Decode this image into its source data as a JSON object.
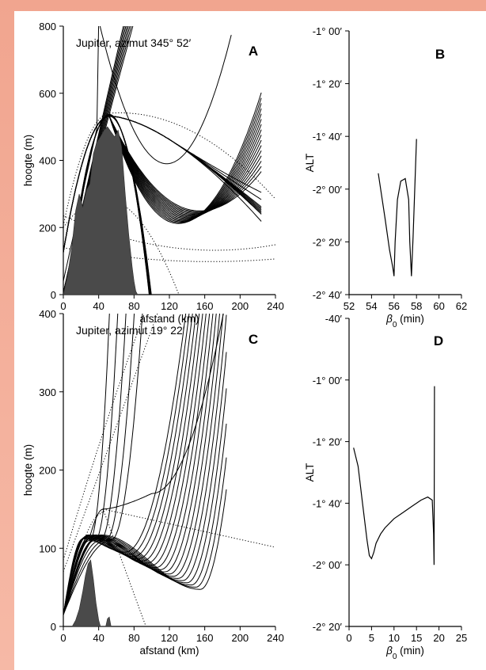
{
  "chart_data": [
    {
      "id": "A",
      "type": "line",
      "panel_letter": "A",
      "title": "Jupiter, azimut 345° 52′",
      "xlabel": "afstand (km)",
      "ylabel": "hoogte (m)",
      "xlim": [
        0,
        240
      ],
      "ylim": [
        0,
        800
      ],
      "xticks": [
        "0",
        "40",
        "80",
        "120",
        "160",
        "200",
        "240"
      ],
      "yticks": [
        "0",
        "200",
        "400",
        "600",
        "800"
      ],
      "terrain": {
        "x": [
          0,
          5,
          10,
          14,
          18,
          22,
          26,
          30,
          34,
          38,
          42,
          46,
          50,
          54,
          58,
          62,
          66,
          70,
          74,
          78,
          80,
          82,
          84
        ],
        "y": [
          0,
          60,
          150,
          250,
          300,
          260,
          310,
          330,
          420,
          455,
          470,
          490,
          500,
          485,
          470,
          490,
          440,
          300,
          180,
          80,
          40,
          10,
          0
        ]
      }
    },
    {
      "id": "B",
      "type": "line",
      "panel_letter": "B",
      "xlabel": "β0 (min)",
      "ylabel": "ALT",
      "xlim": [
        52,
        62
      ],
      "ylim": [
        -160,
        -60
      ],
      "xticks": [
        "52",
        "54",
        "56",
        "58",
        "60",
        "62"
      ],
      "yticks": [
        "-1° 00′",
        "-1° 20′",
        "-1° 40′",
        "-2° 00′",
        "-2° 20′",
        "-2° 40′"
      ],
      "series": [
        {
          "x": [
            54.6,
            55.2,
            55.6,
            55.9,
            56.0,
            56.1,
            56.3,
            56.6,
            57.0,
            57.3,
            57.4,
            57.55,
            57.7,
            58.0
          ],
          "y": [
            -114,
            -131,
            -143,
            -150,
            -153,
            -140,
            -124,
            -117,
            -116,
            -124,
            -140,
            -153,
            -138,
            -101
          ]
        }
      ]
    },
    {
      "id": "C",
      "type": "line",
      "panel_letter": "C",
      "title": "Jupiter, azimut 19° 22′",
      "xlabel": "afstand (km)",
      "ylabel": "hoogte (m)",
      "xlim": [
        0,
        240
      ],
      "ylim": [
        0,
        400
      ],
      "xticks": [
        "0",
        "40",
        "80",
        "120",
        "160",
        "200",
        "240"
      ],
      "yticks": [
        "0",
        "100",
        "200",
        "300",
        "400"
      ],
      "terrain": {
        "x": [
          10,
          14,
          18,
          22,
          25,
          28,
          31,
          34,
          37,
          40,
          42,
          44,
          48,
          50,
          52,
          54
        ],
        "y": [
          0,
          8,
          22,
          45,
          65,
          80,
          85,
          60,
          30,
          8,
          0,
          0,
          0,
          10,
          12,
          0
        ]
      }
    },
    {
      "id": "D",
      "type": "line",
      "panel_letter": "D",
      "xlabel": "β0 (min)",
      "ylabel": "ALT",
      "xlim": [
        0,
        25
      ],
      "ylim": [
        -140,
        -40
      ],
      "xticks": [
        "0",
        "5",
        "10",
        "15",
        "20",
        "25"
      ],
      "yticks": [
        "-40′",
        "-1° 00′",
        "-1° 20′",
        "-1° 40′",
        "-2° 00′",
        "-2° 20′"
      ],
      "series": [
        {
          "x": [
            1.0,
            2.0,
            3.0,
            4.0,
            4.5,
            5.0,
            5.5,
            6.0,
            7.0,
            8.0,
            10.0,
            12.0,
            14.0,
            16.0,
            17.5,
            18.5,
            18.8,
            18.9,
            19.0
          ],
          "y": [
            -82,
            -88,
            -100,
            -112,
            -117,
            -118,
            -116,
            -113,
            -110,
            -108,
            -105,
            -103,
            -101,
            -99,
            -98,
            -99,
            -110,
            -120,
            -62
          ]
        }
      ]
    }
  ]
}
